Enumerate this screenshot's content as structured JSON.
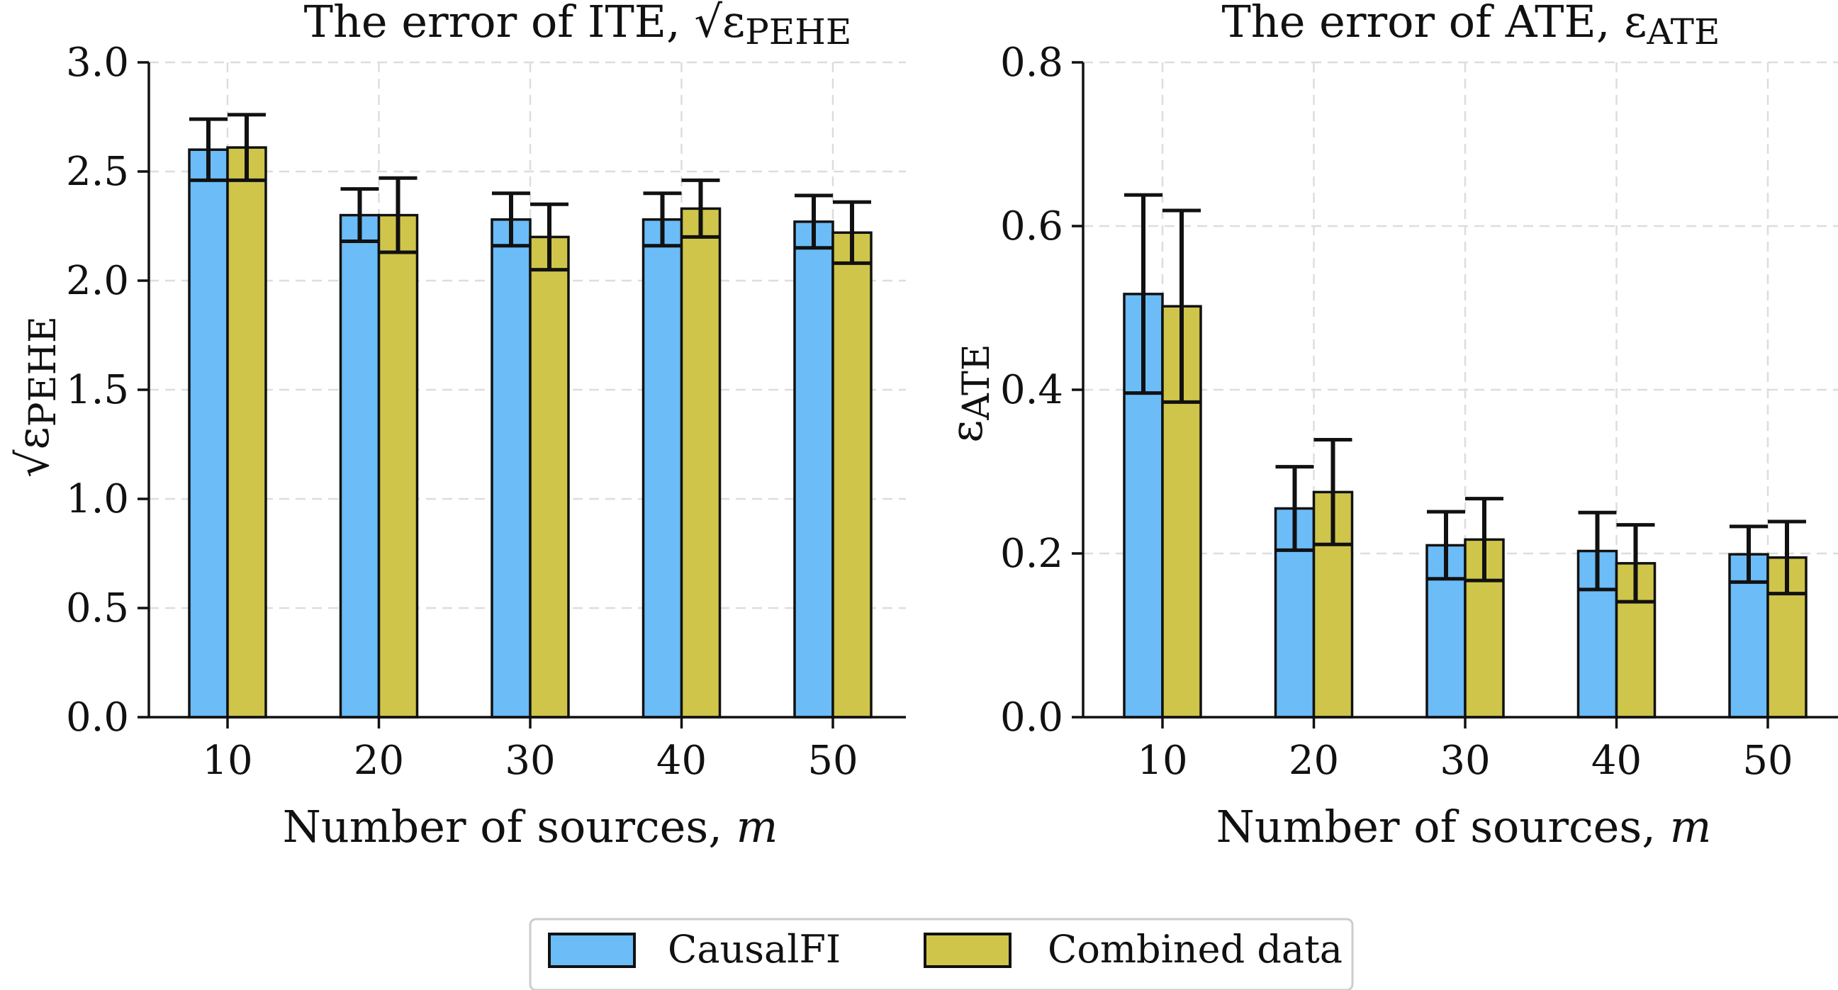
{
  "charts": [
    {
      "title": "The error of ITE, √εPEHE",
      "title_main": "The error of ITE,",
      "title_sym": "ε",
      "title_sub": "PEHE",
      "ylabel_sym": "ε",
      "ylabel_sub": "PEHE",
      "xlabel": "Number of sources, m",
      "xlabel_main": "Number of sources,",
      "xlabel_var": "m"
    },
    {
      "title": "The error of ATE, εATE",
      "title_main": "The error of ATE,",
      "title_sym": "ε",
      "title_sub": "ATE",
      "ylabel_sym": "ε",
      "ylabel_sub": "ATE",
      "xlabel": "Number of sources, m",
      "xlabel_main": "Number of sources,",
      "xlabel_var": "m"
    }
  ],
  "legend": {
    "items": [
      {
        "label": "CausalFI",
        "color": "#6bbcf7"
      },
      {
        "label": "Combined data",
        "color": "#cfc54a"
      }
    ],
    "placement": "bottom-center"
  },
  "chart_data": [
    {
      "type": "bar",
      "title": "The error of ITE, √εPEHE",
      "xlabel": "Number of sources, m",
      "ylabel": "√εPEHE",
      "categories": [
        "10",
        "20",
        "30",
        "40",
        "50"
      ],
      "ylim": [
        0,
        3.0
      ],
      "yticks": [
        "0.0",
        "0.5",
        "1.0",
        "1.5",
        "2.0",
        "2.5",
        "3.0"
      ],
      "grid": true,
      "series": [
        {
          "name": "CausalFI",
          "color": "#6bbcf7",
          "values": [
            2.6,
            2.3,
            2.28,
            2.28,
            2.27
          ],
          "error": [
            0.14,
            0.12,
            0.12,
            0.12,
            0.12
          ]
        },
        {
          "name": "Combined data",
          "color": "#cfc54a",
          "values": [
            2.61,
            2.3,
            2.2,
            2.33,
            2.22
          ],
          "error": [
            0.15,
            0.17,
            0.15,
            0.13,
            0.14
          ]
        }
      ]
    },
    {
      "type": "bar",
      "title": "The error of ATE, εATE",
      "xlabel": "Number of sources, m",
      "ylabel": "εATE",
      "categories": [
        "10",
        "20",
        "30",
        "40",
        "50"
      ],
      "ylim": [
        0,
        0.8
      ],
      "yticks": [
        "0.0",
        "0.2",
        "0.4",
        "0.6",
        "0.8"
      ],
      "grid": true,
      "series": [
        {
          "name": "CausalFI",
          "color": "#6bbcf7",
          "values": [
            0.517,
            0.255,
            0.21,
            0.203,
            0.199
          ],
          "error": [
            0.121,
            0.051,
            0.041,
            0.047,
            0.034
          ]
        },
        {
          "name": "Combined data",
          "color": "#cfc54a",
          "values": [
            0.502,
            0.275,
            0.217,
            0.188,
            0.195
          ],
          "error": [
            0.117,
            0.064,
            0.05,
            0.047,
            0.044
          ]
        }
      ]
    }
  ]
}
